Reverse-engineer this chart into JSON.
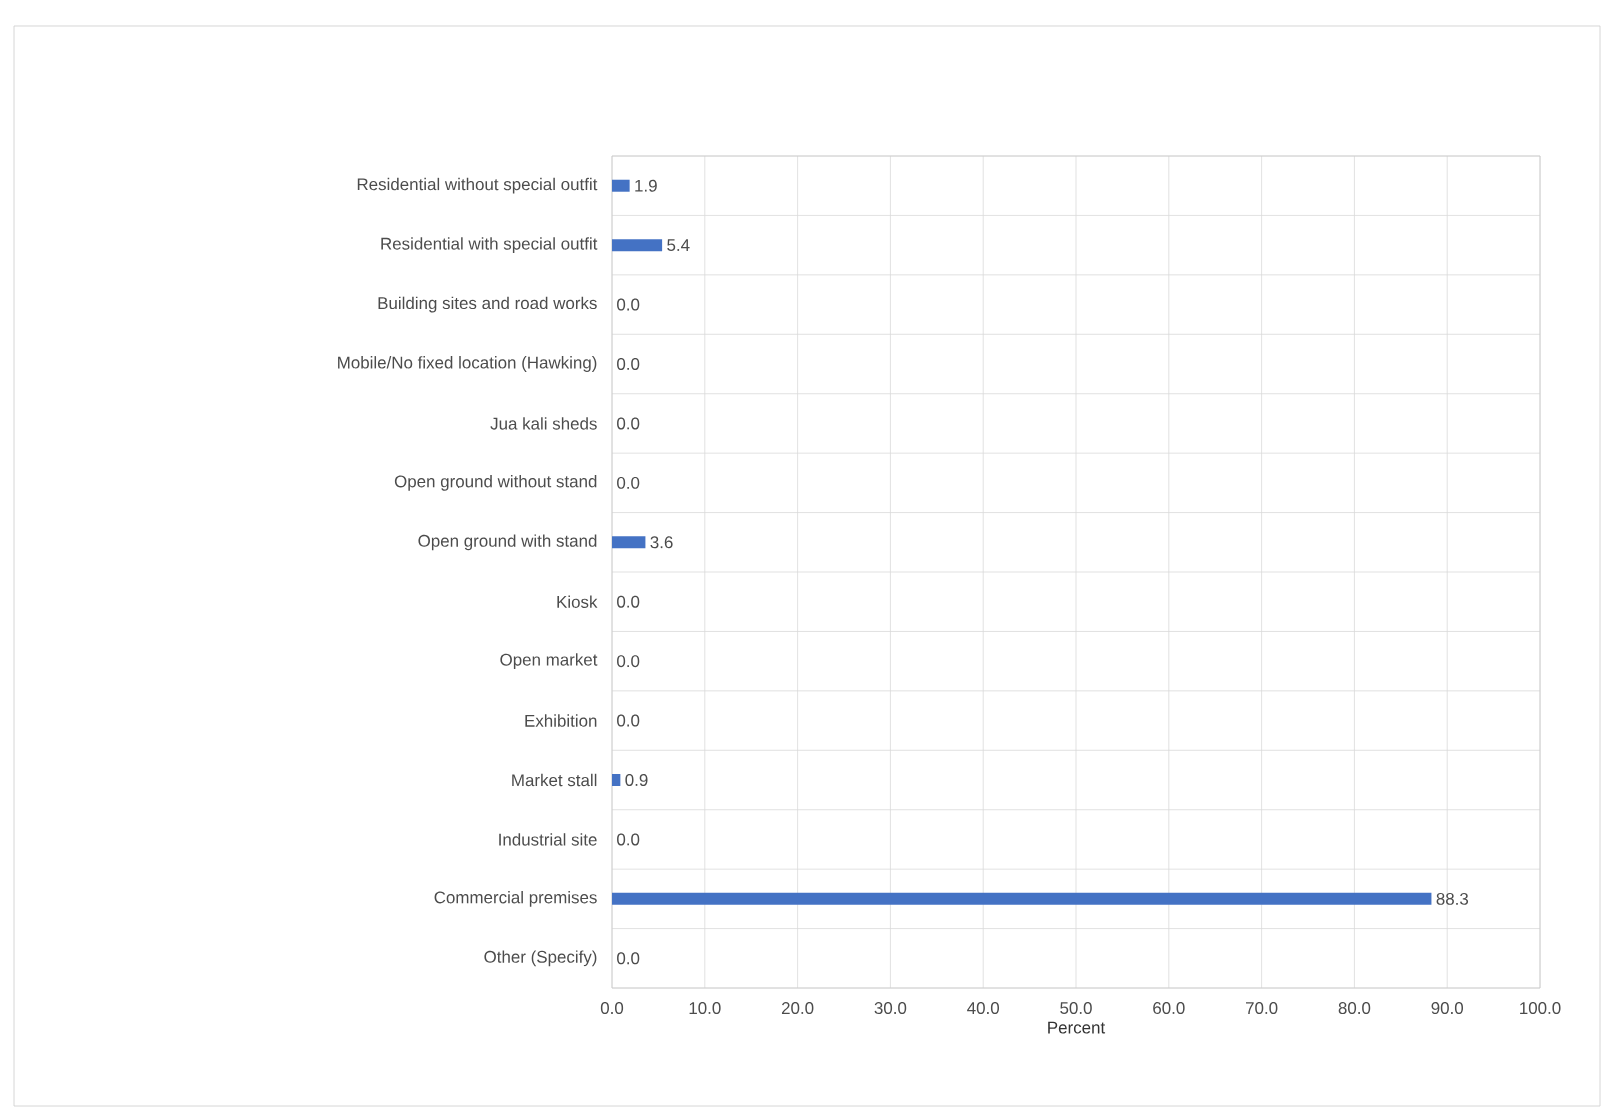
{
  "chart_data": {
    "type": "bar",
    "orientation": "horizontal",
    "xlabel": "Percent",
    "categories": [
      "Residential without special outfit",
      "Residential with special outfit",
      "Building sites and road works",
      "Mobile/No fixed location (Hawking)",
      "Jua kali sheds",
      "Open ground without stand",
      "Open ground with stand",
      "Kiosk",
      "Open market",
      "Exhibition",
      "Market stall",
      "Industrial site",
      "Commercial premises",
      "Other (Specify)"
    ],
    "values": [
      1.9,
      5.4,
      0.0,
      0.0,
      0.0,
      0.0,
      3.6,
      0.0,
      0.0,
      0.0,
      0.9,
      0.0,
      88.3,
      0.0
    ],
    "value_labels": [
      "1.9",
      "5.4",
      "0.0",
      "0.0",
      "0.0",
      "0.0",
      "3.6",
      "0.0",
      "0.0",
      "0.0",
      "0.9",
      "0.0",
      "88.3",
      "0.0"
    ],
    "color": "#4472c4",
    "xlim": [
      0,
      100
    ],
    "xticks": [
      {
        "value": 0,
        "label": "0.0"
      },
      {
        "value": 10,
        "label": "10.0"
      },
      {
        "value": 20,
        "label": "20.0"
      },
      {
        "value": 30,
        "label": "30.0"
      },
      {
        "value": 40,
        "label": "40.0"
      },
      {
        "value": 50,
        "label": "50.0"
      },
      {
        "value": 60,
        "label": "60.0"
      },
      {
        "value": 70,
        "label": "70.0"
      },
      {
        "value": 80,
        "label": "80.0"
      },
      {
        "value": 90,
        "label": "90.0"
      },
      {
        "value": 100,
        "label": "100.0"
      }
    ],
    "grid": true
  }
}
